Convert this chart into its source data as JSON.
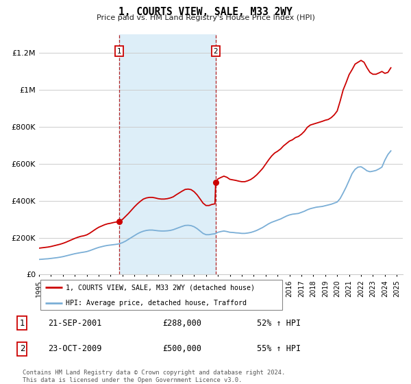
{
  "title": "1, COURTS VIEW, SALE, M33 2WY",
  "subtitle": "Price paid vs. HM Land Registry's House Price Index (HPI)",
  "ylabel_ticks": [
    "£0",
    "£200K",
    "£400K",
    "£600K",
    "£800K",
    "£1M",
    "£1.2M"
  ],
  "ylim": [
    0,
    1300000
  ],
  "xlim_start": 1995.0,
  "xlim_end": 2025.5,
  "purchase1": {
    "date": 2001.72,
    "price": 288000,
    "label": "1",
    "date_str": "21-SEP-2001",
    "price_str": "£288,000",
    "pct_str": "52% ↑ HPI"
  },
  "purchase2": {
    "date": 2009.81,
    "price": 500000,
    "label": "2",
    "date_str": "23-OCT-2009",
    "price_str": "£500,000",
    "pct_str": "55% ↑ HPI"
  },
  "line1_color": "#cc0000",
  "line2_color": "#7aaed6",
  "shading_color": "#ddeef8",
  "grid_color": "#cccccc",
  "background_color": "#ffffff",
  "legend_label1": "1, COURTS VIEW, SALE, M33 2WY (detached house)",
  "legend_label2": "HPI: Average price, detached house, Trafford",
  "footer": "Contains HM Land Registry data © Crown copyright and database right 2024.\nThis data is licensed under the Open Government Licence v3.0.",
  "hpi_years": [
    1995.0,
    1995.25,
    1995.5,
    1995.75,
    1996.0,
    1996.25,
    1996.5,
    1996.75,
    1997.0,
    1997.25,
    1997.5,
    1997.75,
    1998.0,
    1998.25,
    1998.5,
    1998.75,
    1999.0,
    1999.25,
    1999.5,
    1999.75,
    2000.0,
    2000.25,
    2000.5,
    2000.75,
    2001.0,
    2001.25,
    2001.5,
    2001.75,
    2002.0,
    2002.25,
    2002.5,
    2002.75,
    2003.0,
    2003.25,
    2003.5,
    2003.75,
    2004.0,
    2004.25,
    2004.5,
    2004.75,
    2005.0,
    2005.25,
    2005.5,
    2005.75,
    2006.0,
    2006.25,
    2006.5,
    2006.75,
    2007.0,
    2007.25,
    2007.5,
    2007.75,
    2008.0,
    2008.25,
    2008.5,
    2008.75,
    2009.0,
    2009.25,
    2009.5,
    2009.75,
    2010.0,
    2010.25,
    2010.5,
    2010.75,
    2011.0,
    2011.25,
    2011.5,
    2011.75,
    2012.0,
    2012.25,
    2012.5,
    2012.75,
    2013.0,
    2013.25,
    2013.5,
    2013.75,
    2014.0,
    2014.25,
    2014.5,
    2014.75,
    2015.0,
    2015.25,
    2015.5,
    2015.75,
    2016.0,
    2016.25,
    2016.5,
    2016.75,
    2017.0,
    2017.25,
    2017.5,
    2017.75,
    2018.0,
    2018.25,
    2018.5,
    2018.75,
    2019.0,
    2019.25,
    2019.5,
    2019.75,
    2020.0,
    2020.25,
    2020.5,
    2020.75,
    2021.0,
    2021.25,
    2021.5,
    2021.75,
    2022.0,
    2022.25,
    2022.5,
    2022.75,
    2023.0,
    2023.25,
    2023.5,
    2023.75,
    2024.0,
    2024.25,
    2024.5
  ],
  "hpi_values": [
    82000,
    83000,
    84500,
    85500,
    87500,
    89500,
    91500,
    94000,
    97000,
    101000,
    105000,
    109000,
    113000,
    116000,
    119000,
    121500,
    124500,
    129500,
    135500,
    141500,
    147000,
    151000,
    155000,
    158000,
    160000,
    162000,
    164000,
    167000,
    173000,
    181000,
    191000,
    201000,
    211000,
    221000,
    229000,
    235000,
    239000,
    241000,
    241000,
    239000,
    237000,
    236000,
    236000,
    237000,
    239000,
    243000,
    249000,
    255000,
    261000,
    266000,
    267000,
    265000,
    259000,
    249000,
    236000,
    223000,
    216000,
    216000,
    219000,
    221000,
    229000,
    233000,
    236000,
    233000,
    229000,
    228000,
    226000,
    225000,
    223000,
    223000,
    225000,
    228000,
    233000,
    239000,
    247000,
    255000,
    265000,
    275000,
    283000,
    289000,
    295000,
    301000,
    309000,
    317000,
    323000,
    327000,
    329000,
    331000,
    337000,
    343000,
    351000,
    357000,
    361000,
    365000,
    367000,
    369000,
    373000,
    377000,
    381000,
    387000,
    393000,
    412000,
    442000,
    474000,
    510000,
    547000,
    570000,
    582000,
    584000,
    574000,
    562000,
    557000,
    560000,
    564000,
    572000,
    582000,
    620000,
    650000,
    670000
  ],
  "price_paid_years_seg1": [
    1995.0,
    1995.25,
    1995.5,
    1995.75,
    1996.0,
    1996.25,
    1996.5,
    1996.75,
    1997.0,
    1997.25,
    1997.5,
    1997.75,
    1998.0,
    1998.25,
    1998.5,
    1998.75,
    1999.0,
    1999.25,
    1999.5,
    1999.75,
    2000.0,
    2000.25,
    2000.5,
    2000.75,
    2001.0,
    2001.25,
    2001.5,
    2001.72
  ],
  "price_paid_values_seg1": [
    143000,
    145000,
    147000,
    149000,
    152000,
    156000,
    160000,
    164000,
    169000,
    175000,
    182000,
    189000,
    196000,
    202000,
    207000,
    210000,
    215000,
    224000,
    235000,
    246000,
    256000,
    263000,
    270000,
    275000,
    278000,
    282000,
    285000,
    288000
  ],
  "price_paid_years_seg2": [
    2001.72,
    2001.75,
    2002.0,
    2002.25,
    2002.5,
    2002.75,
    2003.0,
    2003.25,
    2003.5,
    2003.75,
    2004.0,
    2004.25,
    2004.5,
    2004.75,
    2005.0,
    2005.25,
    2005.5,
    2005.75,
    2006.0,
    2006.25,
    2006.5,
    2006.75,
    2007.0,
    2007.25,
    2007.5,
    2007.75,
    2008.0,
    2008.25,
    2008.5,
    2008.75,
    2009.0,
    2009.25,
    2009.5,
    2009.75,
    2009.81
  ],
  "price_paid_values_seg2": [
    288000,
    289000,
    299000,
    315000,
    331000,
    349000,
    367000,
    383000,
    397000,
    409000,
    415000,
    418000,
    418000,
    415000,
    411000,
    409000,
    409000,
    411000,
    415000,
    421000,
    432000,
    442000,
    452000,
    461000,
    463000,
    460000,
    449000,
    432000,
    410000,
    387000,
    374000,
    374000,
    380000,
    383000,
    500000
  ],
  "price_paid_years_seg3": [
    2009.81,
    2010.0,
    2010.25,
    2010.5,
    2010.75,
    2011.0,
    2011.25,
    2011.5,
    2011.75,
    2012.0,
    2012.25,
    2012.5,
    2012.75,
    2013.0,
    2013.25,
    2013.5,
    2013.75,
    2014.0,
    2014.25,
    2014.5,
    2014.75,
    2015.0,
    2015.25,
    2015.5,
    2015.75,
    2016.0,
    2016.25,
    2016.5,
    2016.75,
    2017.0,
    2017.25,
    2017.5,
    2017.75,
    2018.0,
    2018.25,
    2018.5,
    2018.75,
    2019.0,
    2019.25,
    2019.5,
    2019.75,
    2020.0,
    2020.25,
    2020.5,
    2020.75,
    2021.0,
    2021.25,
    2021.5,
    2021.75,
    2022.0,
    2022.25,
    2022.5,
    2022.75,
    2023.0,
    2023.25,
    2023.5,
    2023.75,
    2024.0,
    2024.25,
    2024.5
  ],
  "price_paid_values_seg3": [
    500000,
    518000,
    526000,
    533000,
    527000,
    516000,
    513000,
    510000,
    506000,
    503000,
    503000,
    508000,
    515000,
    526000,
    540000,
    557000,
    575000,
    598000,
    621000,
    642000,
    658000,
    668000,
    680000,
    697000,
    710000,
    723000,
    730000,
    742000,
    748000,
    760000,
    776000,
    798000,
    810000,
    815000,
    820000,
    825000,
    830000,
    836000,
    840000,
    850000,
    865000,
    886000,
    940000,
    1000000,
    1040000,
    1083000,
    1110000,
    1140000,
    1150000,
    1160000,
    1150000,
    1120000,
    1095000,
    1085000,
    1085000,
    1092000,
    1100000,
    1090000,
    1095000,
    1120000
  ]
}
